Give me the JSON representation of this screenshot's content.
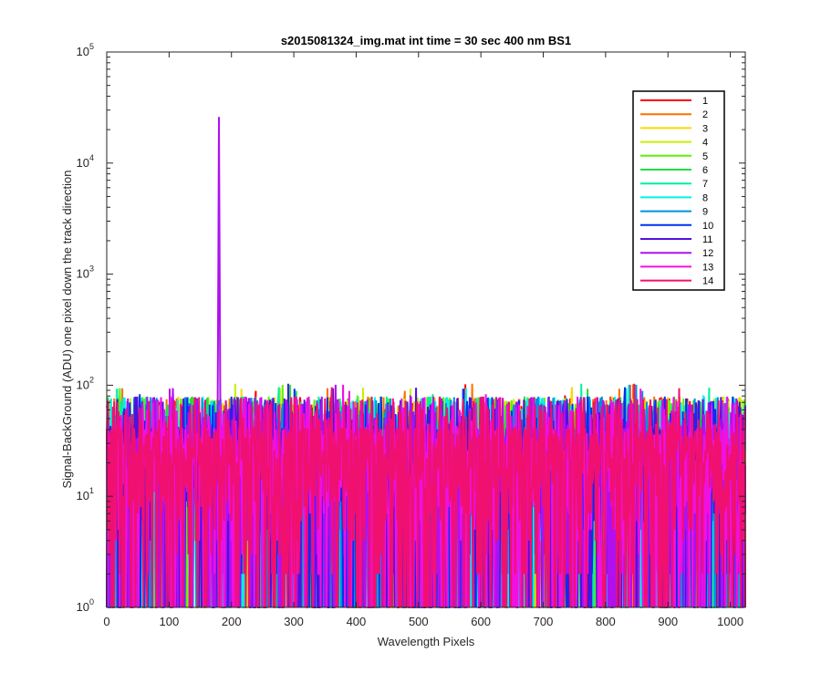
{
  "chart_data": {
    "type": "line",
    "title": "s2015081324_img.mat int time = 30 sec  400 nm BS1",
    "xlabel": "Wavelength Pixels",
    "ylabel": "Signal-BackGround (ADU) one pixel down the track direction",
    "xlim": [
      0,
      1024
    ],
    "ylim": [
      1,
      100000
    ],
    "yscale": "log",
    "xticks": [
      0,
      100,
      200,
      300,
      400,
      500,
      600,
      700,
      800,
      900,
      1000
    ],
    "yticks": [
      {
        "base": "10",
        "exp": "0",
        "value": 1
      },
      {
        "base": "10",
        "exp": "1",
        "value": 10
      },
      {
        "base": "10",
        "exp": "2",
        "value": 100
      },
      {
        "base": "10",
        "exp": "3",
        "value": 1000
      },
      {
        "base": "10",
        "exp": "4",
        "value": 10000
      },
      {
        "base": "10",
        "exp": "5",
        "value": 100000
      }
    ],
    "grid": false,
    "legend_position": "top-right",
    "noise_floor_range": [
      1,
      100
    ],
    "series": [
      {
        "name": "1",
        "color": "#ff0000"
      },
      {
        "name": "2",
        "color": "#ff7000"
      },
      {
        "name": "3",
        "color": "#ffd700"
      },
      {
        "name": "4",
        "color": "#c8f000"
      },
      {
        "name": "5",
        "color": "#60f000"
      },
      {
        "name": "6",
        "color": "#20e040"
      },
      {
        "name": "7",
        "color": "#00f0a0"
      },
      {
        "name": "8",
        "color": "#00f0f0"
      },
      {
        "name": "9",
        "color": "#0090e0"
      },
      {
        "name": "10",
        "color": "#0030f0"
      },
      {
        "name": "11",
        "color": "#5010e0"
      },
      {
        "name": "12",
        "color": "#b010f0",
        "peak": {
          "x": 180,
          "y": 26000
        }
      },
      {
        "name": "13",
        "color": "#f010e0"
      },
      {
        "name": "14",
        "color": "#f01070"
      }
    ]
  }
}
